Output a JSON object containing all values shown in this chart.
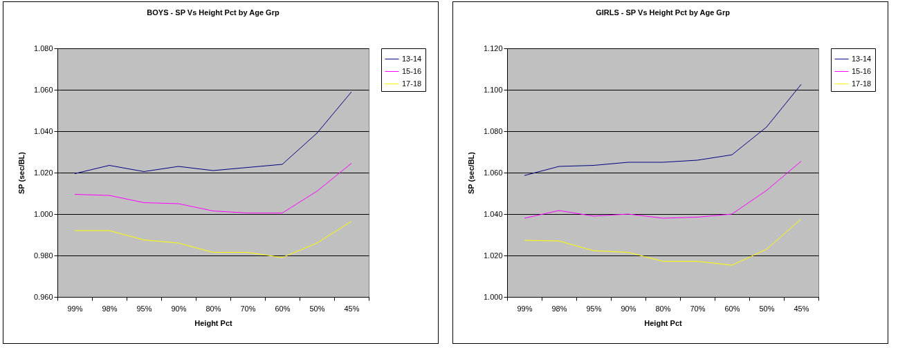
{
  "chart_data": [
    {
      "type": "line",
      "title": "BOYS - SP Vs Height Pct by Age Grp",
      "xlabel": "Height Pct",
      "ylabel": "SP (sec/BL)",
      "categories": [
        "99%",
        "98%",
        "95%",
        "90%",
        "80%",
        "70%",
        "60%",
        "50%",
        "45%"
      ],
      "series": [
        {
          "name": "13-14",
          "color": "#000080",
          "values": [
            1.0195,
            1.0235,
            1.0205,
            1.023,
            1.021,
            1.0225,
            1.024,
            1.039,
            1.059
          ]
        },
        {
          "name": "15-16",
          "color": "#ff00ff",
          "values": [
            1.0095,
            1.009,
            1.0055,
            1.005,
            1.0015,
            1.0005,
            1.0005,
            1.011,
            1.0245
          ]
        },
        {
          "name": "17-18",
          "color": "#ffff00",
          "values": [
            0.992,
            0.992,
            0.9875,
            0.986,
            0.9815,
            0.9815,
            0.979,
            0.986,
            0.9965
          ]
        }
      ],
      "ylim": [
        0.96,
        1.08
      ],
      "yticks": [
        {
          "value": 0.96,
          "label": "0.960"
        },
        {
          "value": 0.98,
          "label": "0.980"
        },
        {
          "value": 1.0,
          "label": "1.000"
        },
        {
          "value": 1.02,
          "label": "1.020"
        },
        {
          "value": 1.04,
          "label": "1.040"
        },
        {
          "value": 1.06,
          "label": "1.060"
        },
        {
          "value": 1.08,
          "label": "1.080"
        }
      ],
      "grid": "y",
      "legend": "right",
      "marker": "none"
    },
    {
      "type": "line",
      "title": "GIRLS - SP Vs Height Pct by Age Grp",
      "xlabel": "Height Pct",
      "ylabel": "SP (sec/BL)",
      "categories": [
        "99%",
        "98%",
        "95%",
        "90%",
        "80%",
        "70%",
        "60%",
        "50%",
        "45%"
      ],
      "series": [
        {
          "name": "13-14",
          "color": "#000080",
          "values": [
            1.0586,
            1.063,
            1.0635,
            1.065,
            1.065,
            1.066,
            1.0686,
            1.082,
            1.1026
          ]
        },
        {
          "name": "15-16",
          "color": "#ff00ff",
          "values": [
            1.038,
            1.0417,
            1.039,
            1.04,
            1.038,
            1.0385,
            1.04,
            1.0514,
            1.0655
          ]
        },
        {
          "name": "17-18",
          "color": "#ffff00",
          "values": [
            1.0273,
            1.027,
            1.0223,
            1.0215,
            1.0172,
            1.0172,
            1.0153,
            1.023,
            1.0376
          ]
        }
      ],
      "ylim": [
        1.0,
        1.12
      ],
      "yticks": [
        {
          "value": 1.0,
          "label": "1.000"
        },
        {
          "value": 1.02,
          "label": "1.020"
        },
        {
          "value": 1.04,
          "label": "1.040"
        },
        {
          "value": 1.06,
          "label": "1.060"
        },
        {
          "value": 1.08,
          "label": "1.080"
        },
        {
          "value": 1.1,
          "label": "1.100"
        },
        {
          "value": 1.12,
          "label": "1.120"
        }
      ],
      "grid": "y",
      "legend": "right",
      "marker": "none"
    }
  ]
}
